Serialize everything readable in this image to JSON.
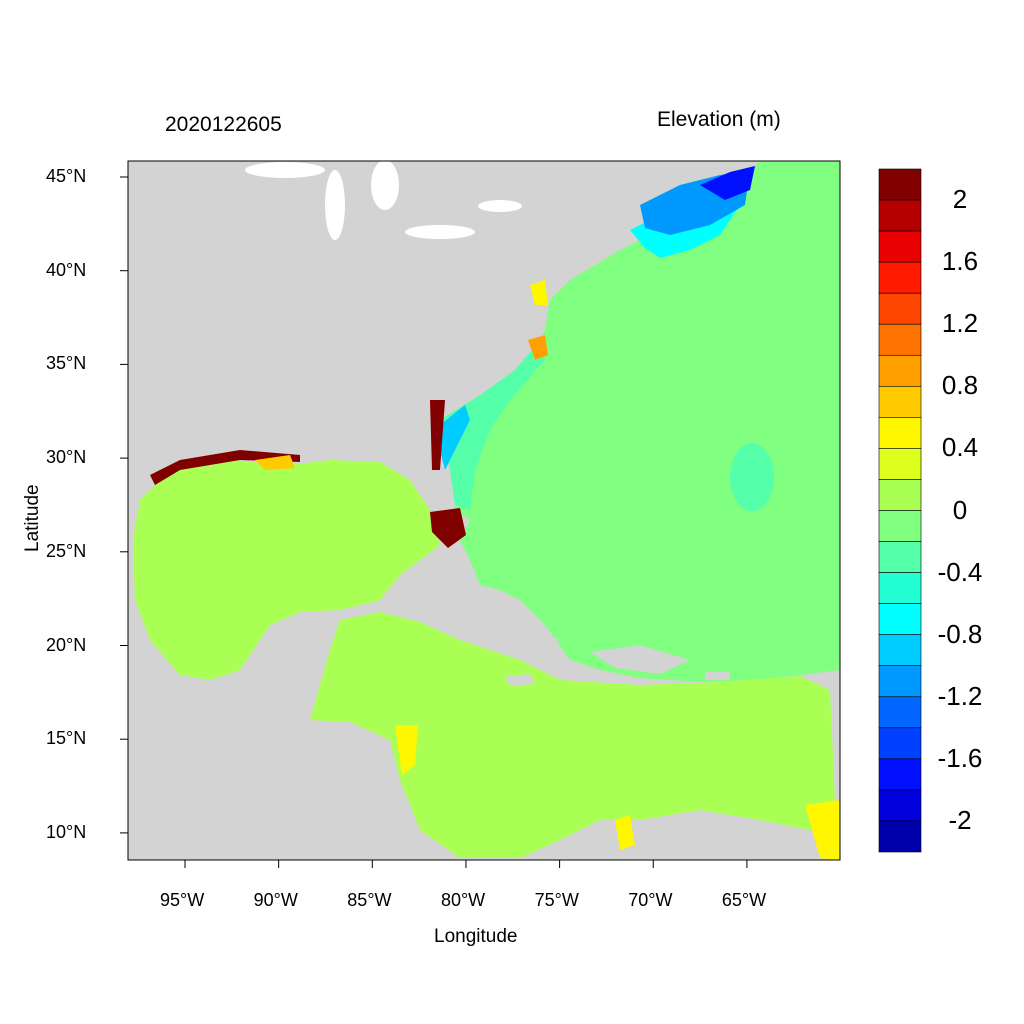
{
  "title": "2020122605",
  "colorbar_title": "Elevation (m)",
  "xlabel": "Longitude",
  "ylabel": "Latitude",
  "lon_ticks": [
    {
      "value": -95,
      "label": "95°W"
    },
    {
      "value": -90,
      "label": "90°W"
    },
    {
      "value": -85,
      "label": "85°W"
    },
    {
      "value": -80,
      "label": "80°W"
    },
    {
      "value": -75,
      "label": "75°W"
    },
    {
      "value": -70,
      "label": "70°W"
    },
    {
      "value": -65,
      "label": "65°W"
    }
  ],
  "lat_ticks": [
    {
      "value": 45,
      "label": "45°N"
    },
    {
      "value": 40,
      "label": "40°N"
    },
    {
      "value": 35,
      "label": "35°N"
    },
    {
      "value": 30,
      "label": "30°N"
    },
    {
      "value": 25,
      "label": "25°N"
    },
    {
      "value": 20,
      "label": "20°N"
    },
    {
      "value": 15,
      "label": "15°N"
    },
    {
      "value": 10,
      "label": "10°N"
    }
  ],
  "colorbar": {
    "range": [
      -2.2,
      2.2
    ],
    "step": 0.2,
    "colors_top_to_bottom": [
      "#800000",
      "#b40000",
      "#e60000",
      "#ff1a00",
      "#ff4600",
      "#ff7300",
      "#ff9f00",
      "#ffcb00",
      "#fff700",
      "#dcff1e",
      "#aaff55",
      "#80ff80",
      "#55ffaa",
      "#22ffd4",
      "#00ffff",
      "#00ccff",
      "#0099ff",
      "#0066ff",
      "#0040ff",
      "#0010ff",
      "#0000dd",
      "#0000aa"
    ],
    "labels": [
      {
        "value": 2,
        "label": "2"
      },
      {
        "value": 1.6,
        "label": "1.6"
      },
      {
        "value": 1.2,
        "label": "1.2"
      },
      {
        "value": 0.8,
        "label": "0.8"
      },
      {
        "value": 0.4,
        "label": "0.4"
      },
      {
        "value": 0,
        "label": "0"
      },
      {
        "value": -0.4,
        "label": "-0.4"
      },
      {
        "value": -0.8,
        "label": "-0.8"
      },
      {
        "value": -1.2,
        "label": "-1.2"
      },
      {
        "value": -1.6,
        "label": "-1.6"
      },
      {
        "value": -2,
        "label": "-2"
      }
    ]
  },
  "colors": {
    "land": "#d3d3d3",
    "atlantic": "#80ff80",
    "gulf": "#aaff55",
    "shelf": "#55ffaa",
    "surge": "#800000",
    "lakes": "#ffffff"
  }
}
